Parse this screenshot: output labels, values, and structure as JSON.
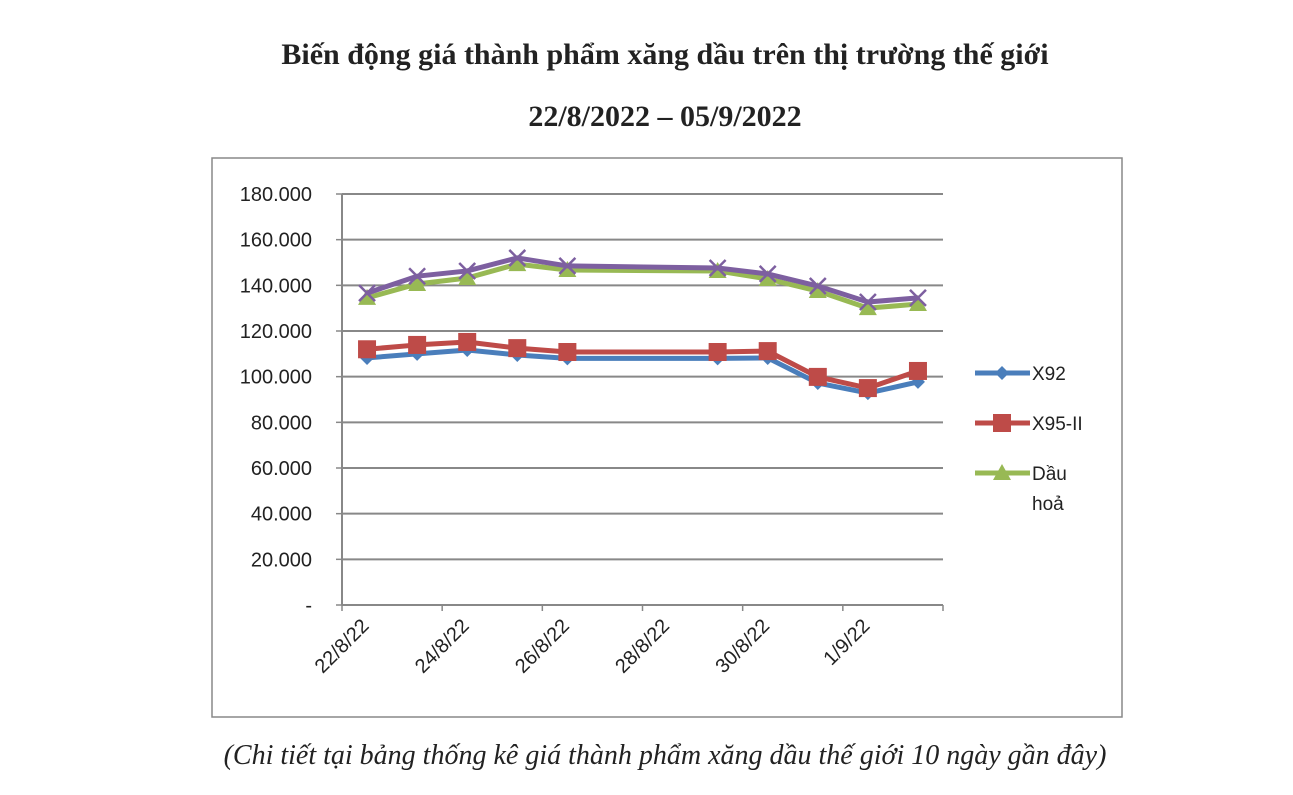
{
  "chart_data": {
    "type": "line",
    "title": "Biến động giá thành phẩm xăng dầu trên thị trường thế giới",
    "subtitle": "22/8/2022 – 05/9/2022",
    "caption": "(Chi tiết tại bảng thống kê giá thành phẩm xăng dầu thế giới 10 ngày gần đây)",
    "xlabel": "",
    "ylabel": "",
    "ylim": [
      0,
      180
    ],
    "yticks": [
      0,
      20,
      40,
      60,
      80,
      100,
      120,
      140,
      160,
      180
    ],
    "ytick_labels": [
      "-",
      "20.000",
      "40.000",
      "60.000",
      "80.000",
      "100.000",
      "120.000",
      "140.000",
      "160.000",
      "180.000"
    ],
    "xtick_labels": [
      "22/8/22",
      "24/8/22",
      "26/8/22",
      "28/8/22",
      "30/8/22",
      "1/9/22"
    ],
    "x_day_offsets": [
      0.5,
      1.5,
      2.5,
      3.5,
      4.5,
      7.5,
      8.5,
      9.5,
      10.5,
      11.5
    ],
    "x_days_range": [
      0,
      12
    ],
    "legend_position": "right",
    "grid": true,
    "series": [
      {
        "name": "X92",
        "color": "#4a7ebb",
        "marker": "diamond",
        "values": [
          108.2,
          110,
          111.7,
          109.5,
          108,
          108,
          108.2,
          97.2,
          92.8,
          97.7
        ]
      },
      {
        "name": "X95-II",
        "color": "#be4b48",
        "marker": "square",
        "values": [
          112,
          113.9,
          115.2,
          112.5,
          110.8,
          110.8,
          111.2,
          99.9,
          95,
          102.5
        ]
      },
      {
        "name": "Dầu hoả",
        "color": "#98b954",
        "marker": "triangle",
        "values": [
          134.5,
          140.6,
          143.2,
          149.3,
          146.7,
          146.3,
          142.8,
          137.5,
          130,
          131.8
        ]
      },
      {
        "name": "",
        "color": "#7d5fa0",
        "marker": "x",
        "values": [
          136.6,
          144,
          146.3,
          152,
          148.5,
          147.6,
          145,
          139.7,
          132.7,
          134.5
        ]
      }
    ]
  }
}
